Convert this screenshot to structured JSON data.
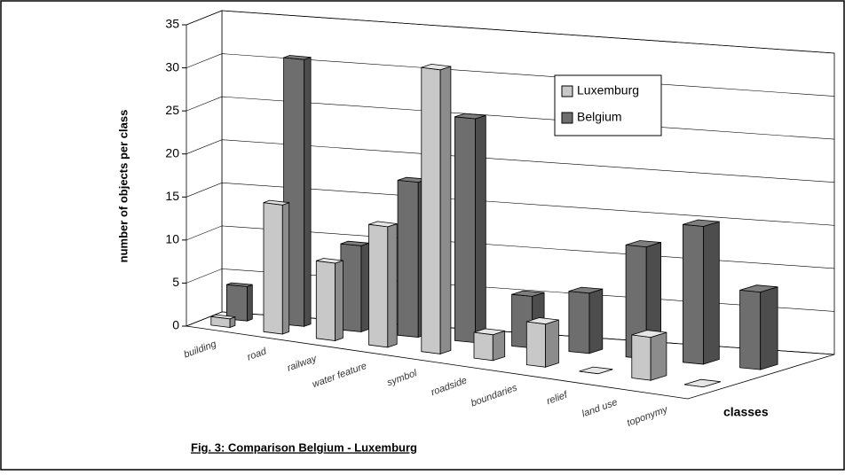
{
  "chart_data": {
    "type": "bar",
    "title": "Fig. 3: Comparison Belgium - Luxemburg",
    "y_label": "number of objects per class",
    "x_label": "classes",
    "categories": [
      "building",
      "road",
      "railway",
      "water feature",
      "symbol",
      "roadside",
      "boundaries",
      "relief",
      "land use",
      "toponymy"
    ],
    "series": [
      {
        "name": "Luxemburg",
        "color": "#c8c8c8",
        "values": [
          1,
          15,
          9,
          14,
          33,
          3,
          5,
          0,
          5,
          0
        ]
      },
      {
        "name": "Belgium",
        "color": "#6e6e6e",
        "values": [
          4,
          31,
          10,
          18,
          26,
          6,
          7,
          13,
          16,
          9
        ]
      }
    ],
    "ylim": [
      0,
      35
    ],
    "yticks": [
      0,
      5,
      10,
      15,
      20,
      25,
      30,
      35
    ],
    "grid": true,
    "legend": "upper right"
  }
}
